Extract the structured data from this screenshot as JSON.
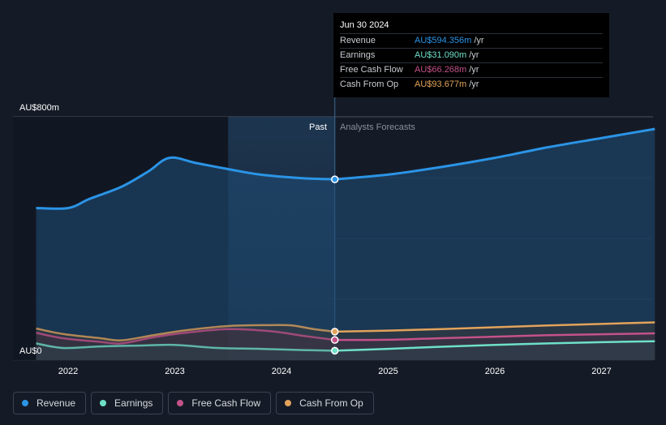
{
  "chart_data": {
    "type": "area",
    "x_tick_labels": [
      "2022",
      "2023",
      "2024",
      "2025",
      "2026",
      "2027"
    ],
    "y_tick_labels": [
      "AU$800m",
      "AU$0"
    ],
    "ylim": [
      0,
      800
    ],
    "divider_labels": {
      "past": "Past",
      "forecast": "Analysts Forecasts"
    },
    "grid": true,
    "legend_position": "bottom-left",
    "series": [
      {
        "name": "Revenue",
        "color": "#2b94e6",
        "points": [
          [
            2021.7,
            500
          ],
          [
            2022.0,
            500
          ],
          [
            2022.2,
            530
          ],
          [
            2022.5,
            570
          ],
          [
            2022.75,
            620
          ],
          [
            2022.95,
            665
          ],
          [
            2023.2,
            648
          ],
          [
            2023.5,
            628
          ],
          [
            2023.8,
            610
          ],
          [
            2024.2,
            598
          ],
          [
            2024.5,
            594.356
          ],
          [
            2025.0,
            610
          ],
          [
            2025.5,
            635
          ],
          [
            2026.0,
            665
          ],
          [
            2026.5,
            700
          ],
          [
            2027.0,
            730
          ],
          [
            2027.5,
            760
          ]
        ]
      },
      {
        "name": "Earnings",
        "color": "#6ee0c8",
        "points": [
          [
            2021.7,
            55
          ],
          [
            2021.95,
            40
          ],
          [
            2022.3,
            45
          ],
          [
            2022.7,
            48
          ],
          [
            2023.0,
            50
          ],
          [
            2023.4,
            40
          ],
          [
            2023.8,
            37
          ],
          [
            2024.2,
            33
          ],
          [
            2024.5,
            31.09
          ],
          [
            2025.0,
            37
          ],
          [
            2025.5,
            44
          ],
          [
            2026.0,
            50
          ],
          [
            2026.5,
            55
          ],
          [
            2027.0,
            59
          ],
          [
            2027.5,
            62
          ]
        ]
      },
      {
        "name": "Free Cash Flow",
        "color": "#c4528a",
        "points": [
          [
            2021.7,
            90
          ],
          [
            2021.95,
            72
          ],
          [
            2022.3,
            60
          ],
          [
            2022.5,
            55
          ],
          [
            2022.8,
            75
          ],
          [
            2023.1,
            90
          ],
          [
            2023.5,
            102
          ],
          [
            2023.9,
            95
          ],
          [
            2024.2,
            80
          ],
          [
            2024.5,
            66.268
          ],
          [
            2025.0,
            67
          ],
          [
            2025.5,
            72
          ],
          [
            2026.0,
            77
          ],
          [
            2026.5,
            82
          ],
          [
            2027.0,
            85
          ],
          [
            2027.5,
            88
          ]
        ]
      },
      {
        "name": "Cash From Op",
        "color": "#e2a35b",
        "points": [
          [
            2021.7,
            104
          ],
          [
            2021.95,
            86
          ],
          [
            2022.3,
            72
          ],
          [
            2022.5,
            65
          ],
          [
            2022.8,
            82
          ],
          [
            2023.1,
            98
          ],
          [
            2023.5,
            112
          ],
          [
            2023.9,
            115
          ],
          [
            2024.1,
            114
          ],
          [
            2024.3,
            102
          ],
          [
            2024.5,
            93.677
          ],
          [
            2025.0,
            97
          ],
          [
            2025.5,
            102
          ],
          [
            2026.0,
            108
          ],
          [
            2026.5,
            114
          ],
          [
            2027.0,
            119
          ],
          [
            2027.5,
            124
          ]
        ]
      }
    ]
  },
  "tooltip": {
    "date": "Jun 30 2024",
    "rows": [
      {
        "label": "Revenue",
        "value": "AU$594.356m",
        "unit": "/yr",
        "color": "#2b94e6"
      },
      {
        "label": "Earnings",
        "value": "AU$31.090m",
        "unit": "/yr",
        "color": "#6ee0c8"
      },
      {
        "label": "Free Cash Flow",
        "value": "AU$66.268m",
        "unit": "/yr",
        "color": "#c4528a"
      },
      {
        "label": "Cash From Op",
        "value": "AU$93.677m",
        "unit": "/yr",
        "color": "#e2a35b"
      }
    ]
  },
  "legend": [
    {
      "label": "Revenue",
      "color": "#2b94e6"
    },
    {
      "label": "Earnings",
      "color": "#6ee0c8"
    },
    {
      "label": "Free Cash Flow",
      "color": "#c4528a"
    },
    {
      "label": "Cash From Op",
      "color": "#e2a35b"
    }
  ]
}
